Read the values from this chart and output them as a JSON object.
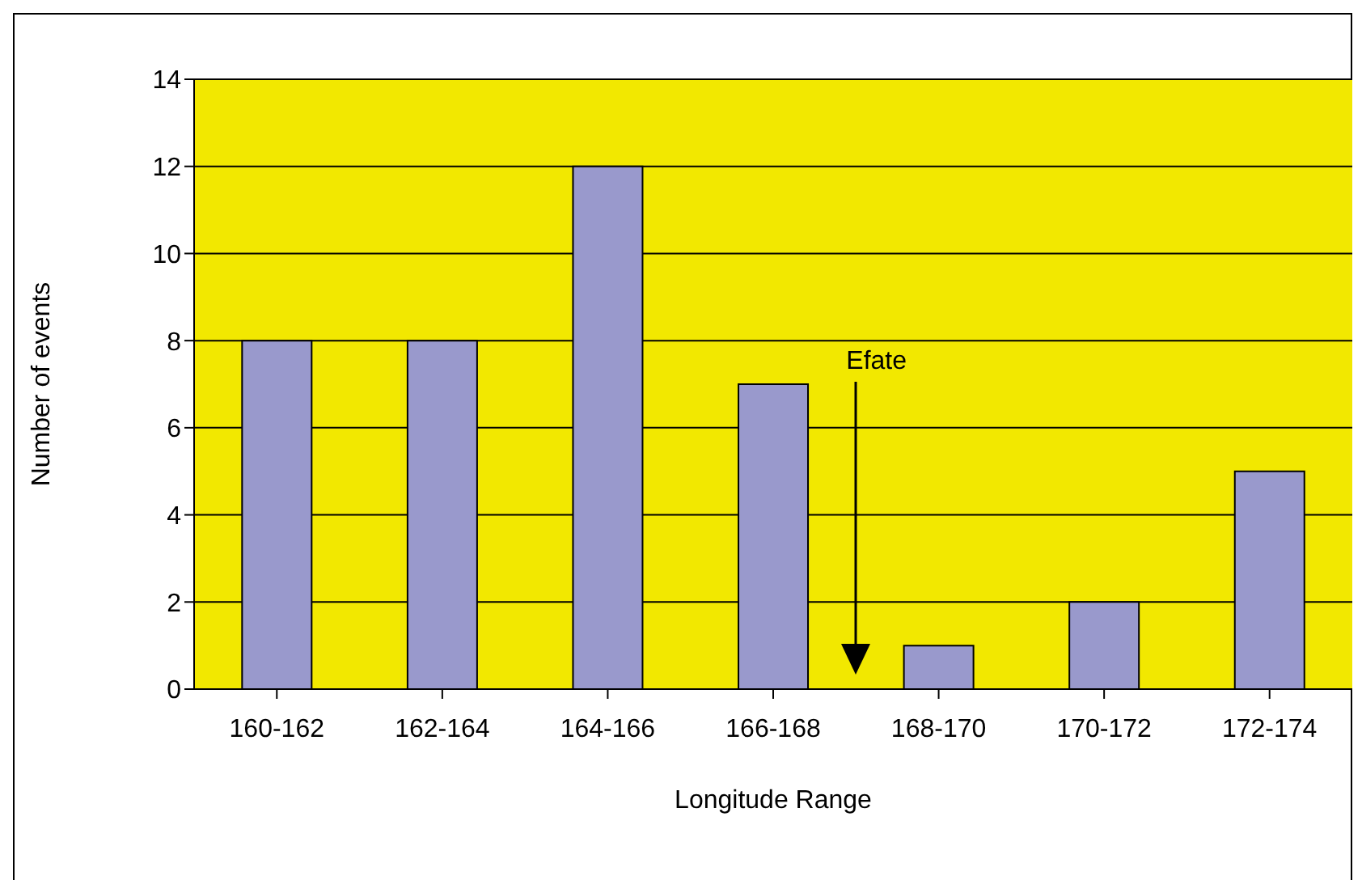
{
  "chart_data": {
    "type": "bar",
    "xlabel": "Longitude Range",
    "ylabel": "Number of events",
    "categories": [
      "160-162",
      "162-164",
      "164-166",
      "166-168",
      "168-170",
      "170-172",
      "172-174"
    ],
    "values": [
      8,
      8,
      12,
      7,
      1,
      2,
      5
    ],
    "color": "#9999cc",
    "ylim": [
      0,
      14
    ],
    "yticks": [
      0,
      2,
      4,
      6,
      8,
      10,
      12,
      14
    ],
    "grid": "y",
    "annotations": [
      "Efate"
    ]
  }
}
